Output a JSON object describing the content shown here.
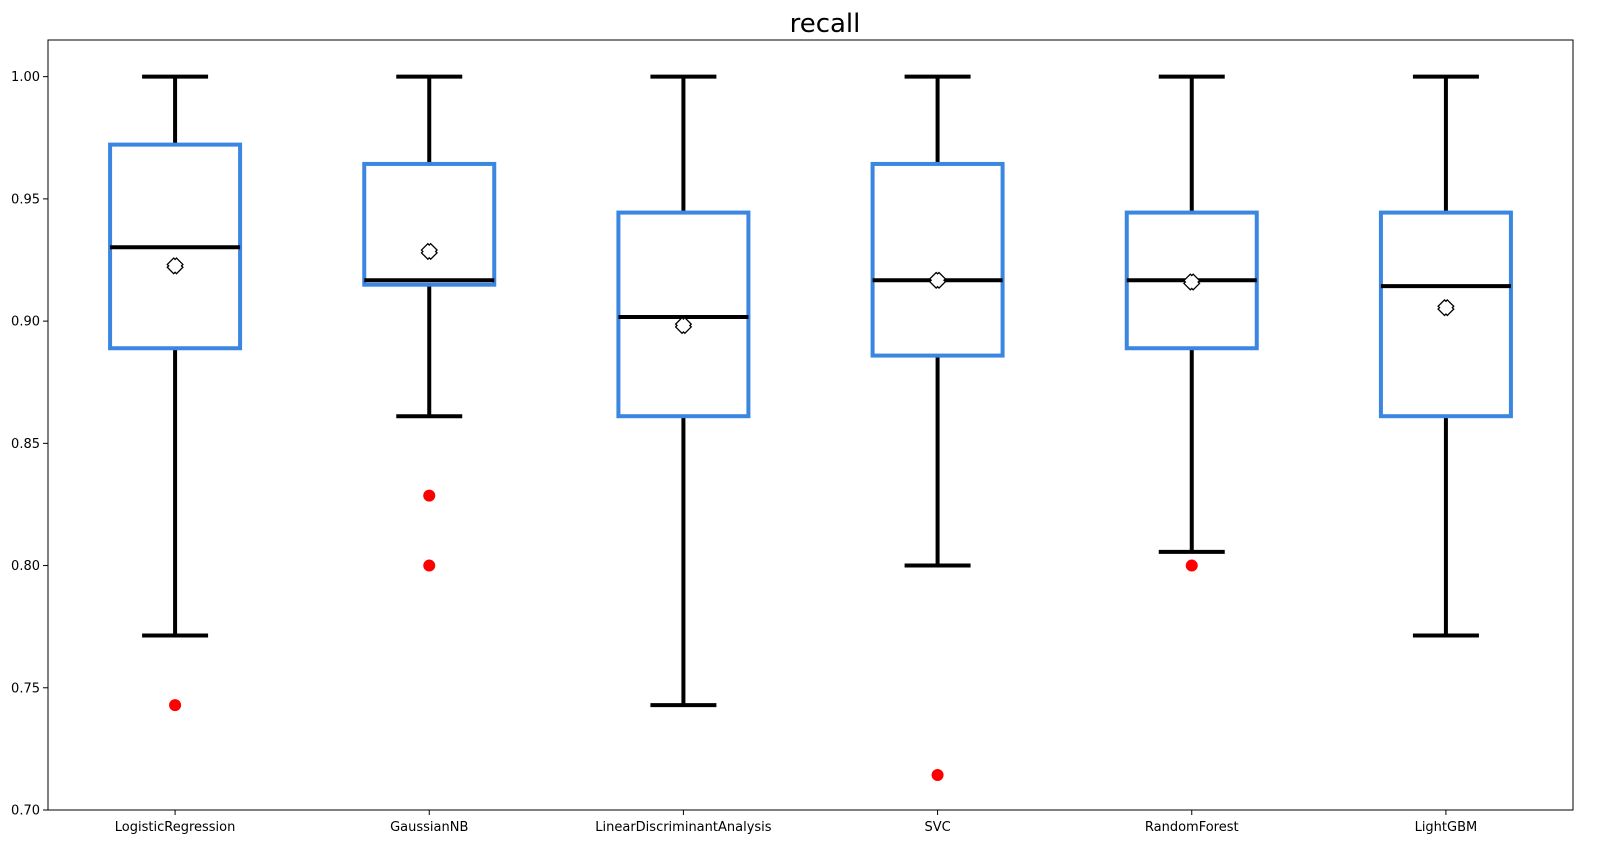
{
  "chart_data": {
    "type": "box",
    "title": "recall",
    "xlabel": "",
    "ylabel": "",
    "ylim": [
      0.7,
      1.015
    ],
    "yticks": [
      0.7,
      0.75,
      0.8,
      0.85,
      0.9,
      0.95,
      1.0
    ],
    "ytick_labels": [
      "0.70",
      "0.75",
      "0.80",
      "0.85",
      "0.90",
      "0.95",
      "1.00"
    ],
    "grid": false,
    "legend": "none",
    "colors": {
      "box": "#3a86e0",
      "whisker": "#000000",
      "median": "#000000",
      "outlier": "#ff0000",
      "mean_marker_face": "#ffffff",
      "mean_marker_edge": "#000000"
    },
    "categories": [
      "LogisticRegression",
      "GaussianNB",
      "LinearDiscriminantAnalysis",
      "SVC",
      "RandomForest",
      "LightGBM"
    ],
    "boxes": [
      {
        "category": "LogisticRegression",
        "whisker_low": 0.7714,
        "q1": 0.8889,
        "median": 0.9302,
        "q3": 0.9722,
        "whisker_high": 1.0,
        "mean": 0.9226,
        "outliers": [
          0.7429
        ]
      },
      {
        "category": "GaussianNB",
        "whisker_low": 0.8611,
        "q1": 0.9149,
        "median": 0.9167,
        "q3": 0.9643,
        "whisker_high": 1.0,
        "mean": 0.9285,
        "outliers": [
          0.8286,
          0.8
        ]
      },
      {
        "category": "LinearDiscriminantAnalysis",
        "whisker_low": 0.7429,
        "q1": 0.8611,
        "median": 0.9017,
        "q3": 0.9444,
        "whisker_high": 1.0,
        "mean": 0.8982,
        "outliers": []
      },
      {
        "category": "SVC",
        "whisker_low": 0.8,
        "q1": 0.8859,
        "median": 0.9167,
        "q3": 0.9643,
        "whisker_high": 1.0,
        "mean": 0.9167,
        "outliers": [
          0.7143
        ]
      },
      {
        "category": "RandomForest",
        "whisker_low": 0.8056,
        "q1": 0.8889,
        "median": 0.9167,
        "q3": 0.9444,
        "whisker_high": 1.0,
        "mean": 0.916,
        "outliers": [
          0.8
        ]
      },
      {
        "category": "LightGBM",
        "whisker_low": 0.7714,
        "q1": 0.8611,
        "median": 0.9143,
        "q3": 0.9444,
        "whisker_high": 1.0,
        "mean": 0.9055,
        "outliers": []
      }
    ]
  }
}
